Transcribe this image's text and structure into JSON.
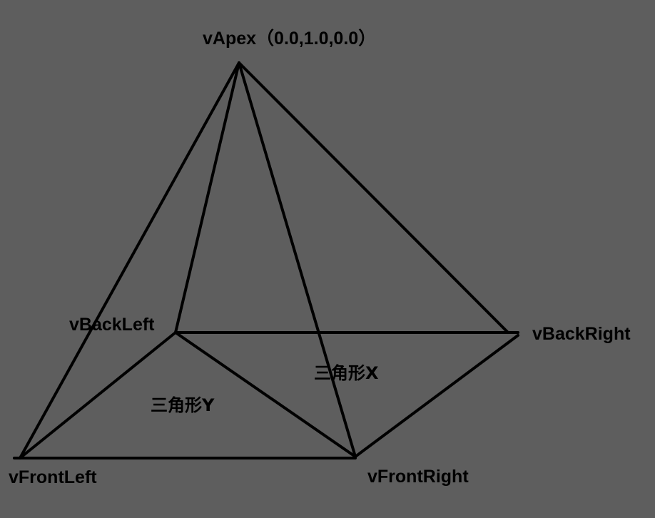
{
  "colors": {
    "background": "#5e5e5e",
    "stroke": "#000000",
    "text": "#000000"
  },
  "vertices": {
    "apex": {
      "label": "vApex（0.0,1.0,0.0）"
    },
    "back_left": {
      "label": "vBackLeft"
    },
    "back_right": {
      "label": "vBackRight"
    },
    "front_left": {
      "label": "vFrontLeft"
    },
    "front_right": {
      "label": "vFrontRight"
    }
  },
  "triangles": {
    "x": {
      "label": "三角形X"
    },
    "y": {
      "label": "三角形Y"
    }
  }
}
